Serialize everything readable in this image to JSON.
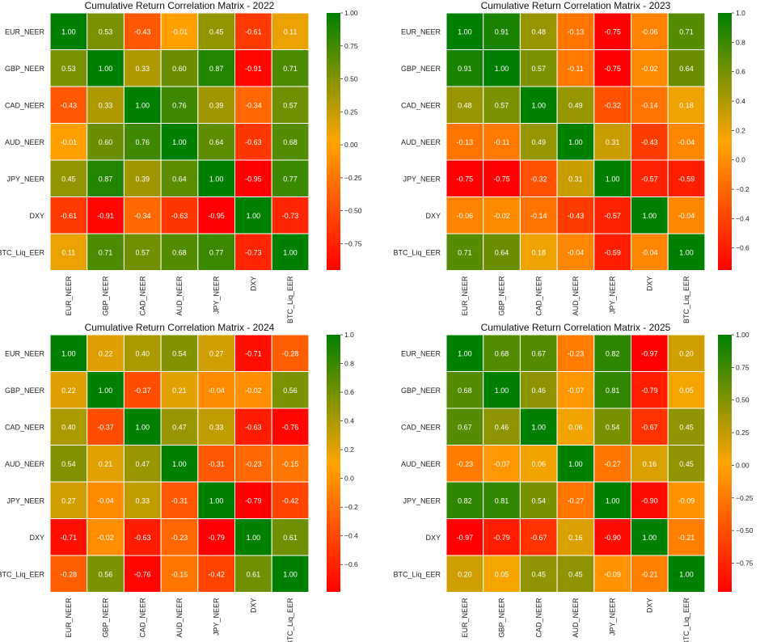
{
  "chart_data": [
    {
      "type": "heatmap",
      "title": "Cumulative Return Correlation Matrix - 2022",
      "labels": [
        "EUR_NEER",
        "GBP_NEER",
        "CAD_NEER",
        "AUD_NEER",
        "JPY_NEER",
        "DXY",
        "BTC_Liq_EER"
      ],
      "matrix": [
        [
          1.0,
          0.53,
          -0.43,
          -0.01,
          0.45,
          -0.61,
          0.11
        ],
        [
          0.53,
          1.0,
          0.33,
          0.6,
          0.87,
          -0.91,
          0.71
        ],
        [
          -0.43,
          0.33,
          1.0,
          0.76,
          0.39,
          -0.34,
          0.57
        ],
        [
          -0.01,
          0.6,
          0.76,
          1.0,
          0.64,
          -0.63,
          0.68
        ],
        [
          0.45,
          0.87,
          0.39,
          0.64,
          1.0,
          -0.95,
          0.77
        ],
        [
          -0.61,
          -0.91,
          -0.34,
          -0.63,
          -0.95,
          1.0,
          -0.73
        ],
        [
          0.11,
          0.71,
          0.57,
          0.68,
          0.77,
          -0.73,
          1.0
        ]
      ],
      "vmin": -0.95,
      "vmax": 1.0,
      "colorbar_ticks": [
        1.0,
        0.75,
        0.5,
        0.25,
        0.0,
        -0.25,
        -0.5,
        -0.75
      ],
      "colorbar_tick_labels": [
        "1.00",
        "0.75",
        "0.50",
        "0.25",
        "0.00",
        "−0.25",
        "−0.50",
        "−0.75"
      ]
    },
    {
      "type": "heatmap",
      "title": "Cumulative Return Correlation Matrix - 2023",
      "labels": [
        "EUR_NEER",
        "GBP_NEER",
        "CAD_NEER",
        "AUD_NEER",
        "JPY_NEER",
        "DXY",
        "BTC_Liq_EER"
      ],
      "matrix": [
        [
          1.0,
          0.91,
          0.48,
          -0.13,
          -0.75,
          -0.06,
          0.71
        ],
        [
          0.91,
          1.0,
          0.57,
          -0.11,
          -0.75,
          -0.02,
          0.64
        ],
        [
          0.48,
          0.57,
          1.0,
          0.49,
          -0.32,
          -0.14,
          0.18
        ],
        [
          -0.13,
          -0.11,
          0.49,
          1.0,
          0.31,
          -0.43,
          -0.04
        ],
        [
          -0.75,
          -0.75,
          -0.32,
          0.31,
          1.0,
          -0.57,
          -0.59
        ],
        [
          -0.06,
          -0.02,
          -0.14,
          -0.43,
          -0.57,
          1.0,
          -0.04
        ],
        [
          0.71,
          0.64,
          0.18,
          -0.04,
          -0.59,
          -0.04,
          1.0
        ]
      ],
      "vmin": -0.75,
      "vmax": 1.0,
      "colorbar_ticks": [
        1.0,
        0.8,
        0.6,
        0.4,
        0.2,
        0.0,
        -0.2,
        -0.4,
        -0.6
      ],
      "colorbar_tick_labels": [
        "1.0",
        "0.8",
        "0.6",
        "0.4",
        "0.2",
        "0.0",
        "−0.2",
        "−0.4",
        "−0.6"
      ]
    },
    {
      "type": "heatmap",
      "title": "Cumulative Return Correlation Matrix - 2024",
      "labels": [
        "EUR_NEER",
        "GBP_NEER",
        "CAD_NEER",
        "AUD_NEER",
        "JPY_NEER",
        "DXY",
        "BTC_Liq_EER"
      ],
      "matrix": [
        [
          1.0,
          0.22,
          0.4,
          0.54,
          0.27,
          -0.71,
          -0.28
        ],
        [
          0.22,
          1.0,
          -0.37,
          0.21,
          -0.04,
          -0.02,
          0.56
        ],
        [
          0.4,
          -0.37,
          1.0,
          0.47,
          0.33,
          -0.63,
          -0.76
        ],
        [
          0.54,
          0.21,
          0.47,
          1.0,
          -0.31,
          -0.23,
          -0.15
        ],
        [
          0.27,
          -0.04,
          0.33,
          -0.31,
          1.0,
          -0.79,
          -0.42
        ],
        [
          -0.71,
          -0.02,
          -0.63,
          -0.23,
          -0.79,
          1.0,
          0.61
        ],
        [
          -0.28,
          0.56,
          -0.76,
          -0.15,
          -0.42,
          0.61,
          1.0
        ]
      ],
      "vmin": -0.79,
      "vmax": 1.0,
      "colorbar_ticks": [
        1.0,
        0.8,
        0.6,
        0.4,
        0.2,
        0.0,
        -0.2,
        -0.4,
        -0.6
      ],
      "colorbar_tick_labels": [
        "1.0",
        "0.8",
        "0.6",
        "0.4",
        "0.2",
        "0.0",
        "−0.2",
        "−0.4",
        "−0.6"
      ]
    },
    {
      "type": "heatmap",
      "title": "Cumulative Return Correlation Matrix - 2025",
      "labels": [
        "EUR_NEER",
        "GBP_NEER",
        "CAD_NEER",
        "AUD_NEER",
        "JPY_NEER",
        "DXY",
        "BTC_Liq_EER"
      ],
      "matrix": [
        [
          1.0,
          0.68,
          0.67,
          -0.23,
          0.82,
          -0.97,
          0.2
        ],
        [
          0.68,
          1.0,
          0.46,
          -0.07,
          0.81,
          -0.79,
          0.05
        ],
        [
          0.67,
          0.46,
          1.0,
          0.06,
          0.54,
          -0.67,
          0.45
        ],
        [
          -0.23,
          -0.07,
          0.06,
          1.0,
          -0.27,
          0.16,
          0.45
        ],
        [
          0.82,
          0.81,
          0.54,
          -0.27,
          1.0,
          -0.9,
          -0.09
        ],
        [
          -0.97,
          -0.79,
          -0.67,
          0.16,
          -0.9,
          1.0,
          -0.21
        ],
        [
          0.2,
          0.05,
          0.45,
          0.45,
          -0.09,
          -0.21,
          1.0
        ]
      ],
      "vmin": -0.97,
      "vmax": 1.0,
      "colorbar_ticks": [
        1.0,
        0.75,
        0.5,
        0.25,
        0.0,
        -0.25,
        -0.5,
        -0.75
      ],
      "colorbar_tick_labels": [
        "1.00",
        "0.75",
        "0.50",
        "0.25",
        "0.00",
        "−0.25",
        "−0.50",
        "−0.75"
      ]
    }
  ],
  "colormap": {
    "stops": [
      "#ff0000",
      "#ffa500",
      "#008000"
    ],
    "text_color": "#ffffff",
    "grid_color": "#ffffff",
    "label_color": "#222222"
  }
}
